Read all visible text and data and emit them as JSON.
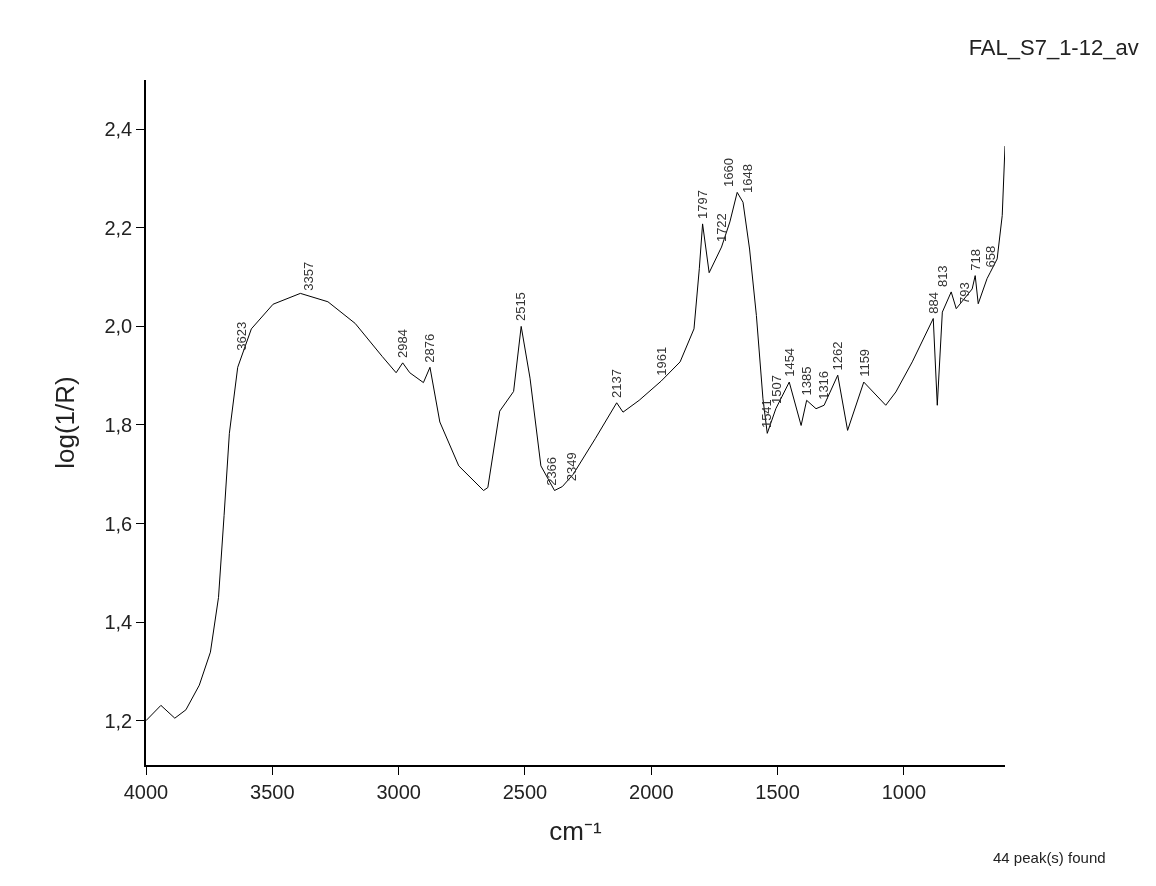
{
  "chart_data": {
    "type": "line",
    "title": "FAL_S7_1-12_av",
    "xlabel": "cm⁻¹",
    "ylabel": "log(1/R)",
    "x": [
      4000,
      3941,
      3886,
      3842,
      3789,
      3745,
      3713,
      3691,
      3670,
      3637,
      3583,
      3497,
      3389,
      3280,
      3172,
      3065,
      3010,
      2984,
      2956,
      2902,
      2876,
      2837,
      2762,
      2664,
      2647,
      2600,
      2545,
      2515,
      2480,
      2437,
      2383,
      2352,
      2309,
      2222,
      2137,
      2112,
      2048,
      1961,
      1886,
      1831,
      1810,
      1797,
      1771,
      1722,
      1689,
      1660,
      1637,
      1611,
      1584,
      1558,
      1541,
      1507,
      1454,
      1407,
      1385,
      1348,
      1316,
      1262,
      1223,
      1159,
      1072,
      1032,
      967,
      884,
      868,
      848,
      813,
      793,
      730,
      718,
      706,
      671,
      658,
      631,
      611,
      600
    ],
    "series": [
      {
        "color": "#000000",
        "values": [
          1.2,
          1.231,
          1.205,
          1.222,
          1.272,
          1.339,
          1.45,
          1.616,
          1.783,
          1.917,
          1.995,
          2.045,
          2.067,
          2.05,
          2.006,
          1.939,
          1.906,
          1.926,
          1.906,
          1.886,
          1.917,
          1.806,
          1.717,
          1.667,
          1.673,
          1.828,
          1.868,
          2.0,
          1.895,
          1.717,
          1.667,
          1.675,
          1.7,
          1.772,
          1.845,
          1.826,
          1.85,
          1.889,
          1.928,
          1.995,
          2.117,
          2.208,
          2.109,
          2.161,
          2.212,
          2.272,
          2.252,
          2.157,
          2.022,
          1.853,
          1.783,
          1.833,
          1.887,
          1.799,
          1.85,
          1.833,
          1.84,
          1.901,
          1.789,
          1.887,
          1.84,
          1.867,
          1.928,
          2.016,
          1.84,
          2.029,
          2.07,
          2.036,
          2.076,
          2.103,
          2.046,
          2.097,
          2.11,
          2.137,
          2.225,
          2.366
        ]
      }
    ],
    "xlim": [
      4000,
      600
    ],
    "ylim": [
      1.11,
      2.5
    ],
    "xticks": [
      4000,
      3500,
      3000,
      2500,
      2000,
      1500,
      1000
    ],
    "yticks": [
      {
        "value": 1.2,
        "label": "1,2"
      },
      {
        "value": 1.4,
        "label": "1,4"
      },
      {
        "value": 1.6,
        "label": "1,6"
      },
      {
        "value": 1.8,
        "label": "1,8"
      },
      {
        "value": 2.0,
        "label": "2,0"
      },
      {
        "value": 2.2,
        "label": "2,2"
      },
      {
        "value": 2.4,
        "label": "2,4"
      }
    ],
    "marker": "none",
    "line_style": "solid",
    "annotations": [
      {
        "text": "3623",
        "x": 3623,
        "y": 1.94
      },
      {
        "text": "3357",
        "x": 3357,
        "y": 2.062
      },
      {
        "text": "2984",
        "x": 2984,
        "y": 1.926
      },
      {
        "text": "2876",
        "x": 2876,
        "y": 1.917
      },
      {
        "text": "2515",
        "x": 2515,
        "y": 2.0
      },
      {
        "text": "2366",
        "x": 2366,
        "y": 1.667
      },
      {
        "text": "2349",
        "x": 2349,
        "y": 1.675
      },
      {
        "text": "2137",
        "x": 2137,
        "y": 1.845
      },
      {
        "text": "1961",
        "x": 1961,
        "y": 1.889
      },
      {
        "text": "1797",
        "x": 1797,
        "y": 2.208
      },
      {
        "text": "1722",
        "x": 1722,
        "y": 2.161
      },
      {
        "text": "1660",
        "x": 1660,
        "y": 2.272
      },
      {
        "text": "1648",
        "x": 1648,
        "y": 2.26
      },
      {
        "text": "1541",
        "x": 1541,
        "y": 1.783
      },
      {
        "text": "1507",
        "x": 1507,
        "y": 1.833
      },
      {
        "text": "1454",
        "x": 1454,
        "y": 1.887
      },
      {
        "text": "1385",
        "x": 1385,
        "y": 1.85
      },
      {
        "text": "1316",
        "x": 1316,
        "y": 1.84
      },
      {
        "text": "1262",
        "x": 1262,
        "y": 1.901
      },
      {
        "text": "1159",
        "x": 1159,
        "y": 1.887
      },
      {
        "text": "884",
        "x": 884,
        "y": 2.016
      },
      {
        "text": "813",
        "x": 813,
        "y": 2.07
      },
      {
        "text": "793",
        "x": 793,
        "y": 2.036
      },
      {
        "text": "718",
        "x": 718,
        "y": 2.103
      },
      {
        "text": "658",
        "x": 658,
        "y": 2.11
      },
      "44 peak(s) found"
    ]
  }
}
